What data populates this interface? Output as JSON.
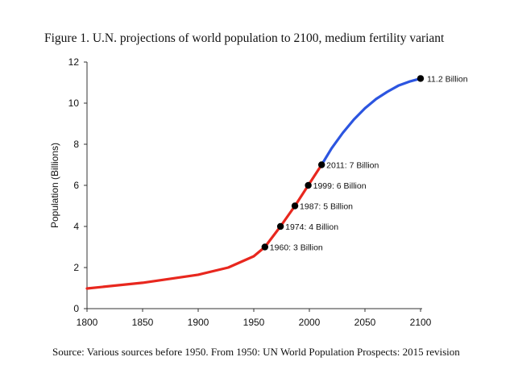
{
  "chart_data": {
    "type": "line",
    "title": "Figure 1. U.N. projections of world population to 2100, medium fertility variant",
    "ylabel": "Population (Billions)",
    "xlabel": "",
    "source": "Source: Various sources before 1950. From 1950: UN World Population Prospects: 2015 revision",
    "xlim": [
      1800,
      2100
    ],
    "ylim": [
      0,
      12
    ],
    "xticks": [
      1800,
      1850,
      1900,
      1950,
      2000,
      2050,
      2100
    ],
    "yticks": [
      0,
      2,
      4,
      6,
      8,
      10,
      12
    ],
    "grid": false,
    "series": [
      {
        "color": "#e8271e",
        "x": [
          1800,
          1850,
          1900,
          1927,
          1950,
          1960,
          1974,
          1987,
          1999,
          2011
        ],
        "y": [
          0.98,
          1.26,
          1.65,
          2.0,
          2.55,
          3.0,
          4.0,
          5.0,
          6.0,
          7.0
        ]
      },
      {
        "color": "#2c55e0",
        "x": [
          2011,
          2020,
          2030,
          2040,
          2050,
          2060,
          2070,
          2080,
          2090,
          2100
        ],
        "y": [
          7.0,
          7.8,
          8.55,
          9.2,
          9.75,
          10.2,
          10.55,
          10.85,
          11.05,
          11.2
        ]
      }
    ],
    "annotations": [
      {
        "x": 1960,
        "y": 3,
        "text": "1960: 3 Billion"
      },
      {
        "x": 1974,
        "y": 4,
        "text": "1974: 4 Billion"
      },
      {
        "x": 1987,
        "y": 5,
        "text": "1987: 5 Billion"
      },
      {
        "x": 1999,
        "y": 6,
        "text": "1999: 6 Billion"
      },
      {
        "x": 2011,
        "y": 7,
        "text": "2011: 7 Billion"
      },
      {
        "x": 2100,
        "y": 11.2,
        "text": "11.2 Billion"
      }
    ]
  }
}
